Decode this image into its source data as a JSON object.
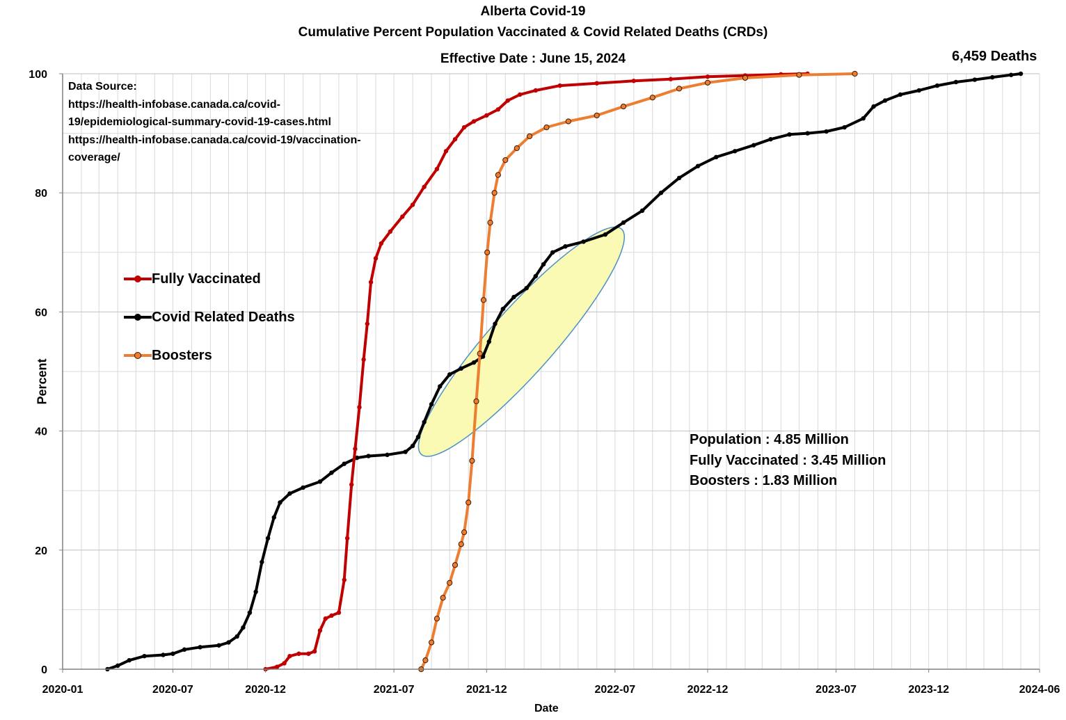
{
  "chart_data": {
    "type": "line",
    "title": "Alberta Covid-19",
    "subtitle": "Cumulative Percent Population Vaccinated & Covid Related Deaths (CRDs)",
    "effective_date": "Effective Date : June 15, 2024",
    "xlabel": "Date",
    "ylabel": "Percent",
    "ylim": [
      0,
      100
    ],
    "yticks": [
      0,
      20,
      40,
      60,
      80,
      100
    ],
    "xticks": [
      "2020-01",
      "2020-07",
      "2020-12",
      "2021-07",
      "2021-12",
      "2022-07",
      "2022-12",
      "2023-07",
      "2023-12",
      "2024-06"
    ],
    "grid": true,
    "legend_position": "left",
    "data_source": [
      "Data Source:",
      "https://health-infobase.canada.ca/covid-",
      "19/epidemiological-summary-covid-19-cases.html",
      "https://health-infobase.canada.ca/covid-19/vaccination-",
      "coverage/"
    ],
    "stats": [
      "Population : 4.85 Million",
      "Fully Vaccinated : 3.45 Million",
      "Boosters : 1.83 Million"
    ],
    "end_label": "6,459 Deaths",
    "highlight": {
      "color": "#fafab4",
      "stroke": "#4a90c8",
      "x_from": "2021-09-01",
      "x_to": "2022-06-25",
      "y_from": 38,
      "y_to": 72
    },
    "series": [
      {
        "name": "Fully Vaccinated",
        "color": "#c00000",
        "marker": "#c00000",
        "points": [
          [
            "2020-12-01",
            0
          ],
          [
            "2020-12-20",
            0.4
          ],
          [
            "2021-01-01",
            1.0
          ],
          [
            "2021-01-10",
            2.2
          ],
          [
            "2021-01-25",
            2.6
          ],
          [
            "2021-02-10",
            2.6
          ],
          [
            "2021-02-20",
            3.0
          ],
          [
            "2021-03-01",
            6.5
          ],
          [
            "2021-03-10",
            8.5
          ],
          [
            "2021-03-20",
            9.0
          ],
          [
            "2021-04-01",
            9.5
          ],
          [
            "2021-04-10",
            15
          ],
          [
            "2021-04-15",
            22
          ],
          [
            "2021-04-22",
            31
          ],
          [
            "2021-04-28",
            37
          ],
          [
            "2021-05-05",
            44
          ],
          [
            "2021-05-12",
            52
          ],
          [
            "2021-05-18",
            58
          ],
          [
            "2021-05-24",
            65
          ],
          [
            "2021-06-01",
            69
          ],
          [
            "2021-06-10",
            71.5
          ],
          [
            "2021-06-25",
            73.5
          ],
          [
            "2021-07-15",
            76
          ],
          [
            "2021-08-01",
            78
          ],
          [
            "2021-08-20",
            81
          ],
          [
            "2021-09-10",
            84
          ],
          [
            "2021-09-25",
            87
          ],
          [
            "2021-10-10",
            89
          ],
          [
            "2021-10-25",
            91
          ],
          [
            "2021-11-10",
            92
          ],
          [
            "2021-12-01",
            93
          ],
          [
            "2021-12-20",
            94
          ],
          [
            "2022-01-05",
            95.5
          ],
          [
            "2022-01-25",
            96.5
          ],
          [
            "2022-02-20",
            97.2
          ],
          [
            "2022-04-01",
            98
          ],
          [
            "2022-06-01",
            98.4
          ],
          [
            "2022-08-01",
            98.8
          ],
          [
            "2022-10-01",
            99.1
          ],
          [
            "2022-12-01",
            99.5
          ],
          [
            "2023-02-01",
            99.7
          ],
          [
            "2023-04-01",
            99.9
          ],
          [
            "2023-05-15",
            100
          ]
        ]
      },
      {
        "name": "Covid Related Deaths",
        "color": "#000000",
        "marker": "#000000",
        "points": [
          [
            "2020-03-15",
            0
          ],
          [
            "2020-04-01",
            0.6
          ],
          [
            "2020-04-20",
            1.5
          ],
          [
            "2020-05-15",
            2.2
          ],
          [
            "2020-06-15",
            2.4
          ],
          [
            "2020-07-01",
            2.6
          ],
          [
            "2020-07-20",
            3.3
          ],
          [
            "2020-08-15",
            3.7
          ],
          [
            "2020-09-15",
            4.0
          ],
          [
            "2020-10-01",
            4.5
          ],
          [
            "2020-10-15",
            5.5
          ],
          [
            "2020-10-25",
            7.0
          ],
          [
            "2020-11-05",
            9.5
          ],
          [
            "2020-11-15",
            13
          ],
          [
            "2020-11-25",
            18
          ],
          [
            "2020-12-05",
            22
          ],
          [
            "2020-12-15",
            25.5
          ],
          [
            "2020-12-25",
            28
          ],
          [
            "2021-01-10",
            29.5
          ],
          [
            "2021-02-01",
            30.5
          ],
          [
            "2021-03-01",
            31.5
          ],
          [
            "2021-03-20",
            33
          ],
          [
            "2021-04-10",
            34.5
          ],
          [
            "2021-05-01",
            35.5
          ],
          [
            "2021-05-20",
            35.8
          ],
          [
            "2021-06-20",
            36
          ],
          [
            "2021-07-20",
            36.5
          ],
          [
            "2021-08-01",
            37.5
          ],
          [
            "2021-08-10",
            39
          ],
          [
            "2021-08-20",
            41.5
          ],
          [
            "2021-09-01",
            44.5
          ],
          [
            "2021-09-15",
            47.5
          ],
          [
            "2021-10-01",
            49.5
          ],
          [
            "2021-10-20",
            50.5
          ],
          [
            "2021-11-10",
            51.5
          ],
          [
            "2021-11-25",
            52.5
          ],
          [
            "2021-12-05",
            55
          ],
          [
            "2021-12-15",
            58
          ],
          [
            "2021-12-28",
            60.5
          ],
          [
            "2022-01-15",
            62.5
          ],
          [
            "2022-02-05",
            64
          ],
          [
            "2022-02-20",
            66
          ],
          [
            "2022-03-05",
            68
          ],
          [
            "2022-03-20",
            70
          ],
          [
            "2022-04-10",
            71
          ],
          [
            "2022-05-10",
            71.8
          ],
          [
            "2022-06-15",
            73
          ],
          [
            "2022-07-15",
            75
          ],
          [
            "2022-08-15",
            77
          ],
          [
            "2022-09-15",
            80
          ],
          [
            "2022-10-15",
            82.5
          ],
          [
            "2022-11-15",
            84.5
          ],
          [
            "2022-12-15",
            86
          ],
          [
            "2023-01-15",
            87
          ],
          [
            "2023-02-15",
            88
          ],
          [
            "2023-03-15",
            89
          ],
          [
            "2023-04-15",
            89.8
          ],
          [
            "2023-05-15",
            90
          ],
          [
            "2023-06-15",
            90.3
          ],
          [
            "2023-07-15",
            91
          ],
          [
            "2023-08-15",
            92.5
          ],
          [
            "2023-09-01",
            94.5
          ],
          [
            "2023-09-20",
            95.5
          ],
          [
            "2023-10-15",
            96.5
          ],
          [
            "2023-11-15",
            97.2
          ],
          [
            "2023-12-15",
            98
          ],
          [
            "2024-01-15",
            98.6
          ],
          [
            "2024-02-15",
            99
          ],
          [
            "2024-03-15",
            99.4
          ],
          [
            "2024-04-15",
            99.8
          ],
          [
            "2024-05-01",
            100
          ]
        ]
      },
      {
        "name": "Boosters",
        "color": "#ed7d31",
        "marker": "#ed7d31",
        "points": [
          [
            "2021-08-15",
            0
          ],
          [
            "2021-08-22",
            1.5
          ],
          [
            "2021-09-01",
            4.5
          ],
          [
            "2021-09-10",
            8.5
          ],
          [
            "2021-09-20",
            12
          ],
          [
            "2021-10-01",
            14.5
          ],
          [
            "2021-10-10",
            17.5
          ],
          [
            "2021-10-20",
            21
          ],
          [
            "2021-10-25",
            23
          ],
          [
            "2021-11-01",
            28
          ],
          [
            "2021-11-07",
            35
          ],
          [
            "2021-11-14",
            45
          ],
          [
            "2021-11-20",
            53
          ],
          [
            "2021-11-26",
            62
          ],
          [
            "2021-12-02",
            70
          ],
          [
            "2021-12-07",
            75
          ],
          [
            "2021-12-14",
            80
          ],
          [
            "2021-12-20",
            83
          ],
          [
            "2022-01-01",
            85.5
          ],
          [
            "2022-01-20",
            87.5
          ],
          [
            "2022-02-10",
            89.5
          ],
          [
            "2022-03-10",
            91
          ],
          [
            "2022-04-15",
            92
          ],
          [
            "2022-06-01",
            93
          ],
          [
            "2022-07-15",
            94.5
          ],
          [
            "2022-09-01",
            96
          ],
          [
            "2022-10-15",
            97.5
          ],
          [
            "2022-12-01",
            98.5
          ],
          [
            "2023-02-01",
            99.3
          ],
          [
            "2023-05-01",
            99.8
          ],
          [
            "2023-08-01",
            100
          ]
        ]
      }
    ]
  }
}
